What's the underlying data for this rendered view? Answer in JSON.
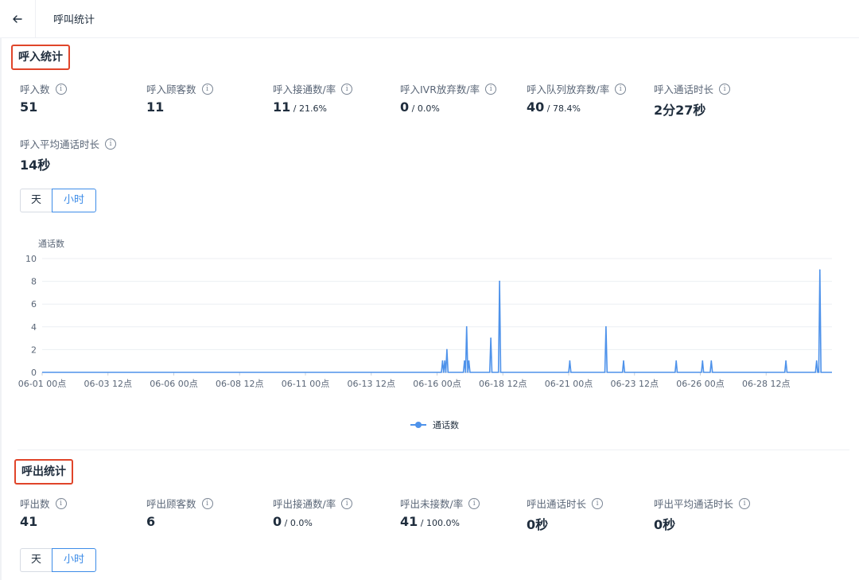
{
  "header": {
    "title": "呼叫统计"
  },
  "inbound": {
    "title": "呼入统计",
    "stats": [
      {
        "label": "呼入数",
        "value": "51",
        "rate": ""
      },
      {
        "label": "呼入顾客数",
        "value": "11",
        "rate": ""
      },
      {
        "label": "呼入接通数/率",
        "value": "11",
        "rate": " / 21.6%"
      },
      {
        "label": "呼入IVR放弃数/率",
        "value": "0",
        "rate": " / 0.0%"
      },
      {
        "label": "呼入队列放弃数/率",
        "value": "40",
        "rate": " / 78.4%"
      },
      {
        "label": "呼入通话时长",
        "value": "2分27秒",
        "rate": ""
      },
      {
        "label": "呼入平均通话时长",
        "value": "14秒",
        "rate": ""
      }
    ],
    "toggle": {
      "day": "天",
      "hour": "小时",
      "active": "hour"
    }
  },
  "outbound": {
    "title": "呼出统计",
    "stats": [
      {
        "label": "呼出数",
        "value": "41",
        "rate": ""
      },
      {
        "label": "呼出顾客数",
        "value": "6",
        "rate": ""
      },
      {
        "label": "呼出接通数/率",
        "value": "0",
        "rate": " / 0.0%"
      },
      {
        "label": "呼出未接数/率",
        "value": "41",
        "rate": " / 100.0%"
      },
      {
        "label": "呼出通话时长",
        "value": "0秒",
        "rate": ""
      },
      {
        "label": "呼出平均通话时长",
        "value": "0秒",
        "rate": ""
      }
    ],
    "toggle": {
      "day": "天",
      "hour": "小时",
      "active": "hour"
    }
  },
  "info_glyph": "i",
  "chart_data": {
    "type": "line",
    "ylabel": "通话数",
    "ylim": [
      0,
      10
    ],
    "yticks": [
      0,
      2,
      4,
      6,
      8,
      10
    ],
    "x_start_hours": 0,
    "x_end_hours": 720,
    "x_tick_labels": [
      {
        "h": 0,
        "label": "06-01 00点"
      },
      {
        "h": 60,
        "label": "06-03 12点"
      },
      {
        "h": 120,
        "label": "06-06 00点"
      },
      {
        "h": 180,
        "label": "06-08 12点"
      },
      {
        "h": 240,
        "label": "06-11 00点"
      },
      {
        "h": 300,
        "label": "06-13 12点"
      },
      {
        "h": 360,
        "label": "06-16 00点"
      },
      {
        "h": 420,
        "label": "06-18 12点"
      },
      {
        "h": 480,
        "label": "06-21 00点"
      },
      {
        "h": 540,
        "label": "06-23 12点"
      },
      {
        "h": 600,
        "label": "06-26 00点"
      },
      {
        "h": 660,
        "label": "06-28 12点"
      }
    ],
    "series": [
      {
        "name": "通话数",
        "color": "#4e92ea",
        "points": [
          [
            365,
            1
          ],
          [
            367,
            1
          ],
          [
            369,
            2
          ],
          [
            385,
            1
          ],
          [
            387,
            4
          ],
          [
            389,
            1
          ],
          [
            409,
            3
          ],
          [
            417,
            8
          ],
          [
            481,
            1
          ],
          [
            514,
            4
          ],
          [
            530,
            1
          ],
          [
            578,
            1
          ],
          [
            602,
            1
          ],
          [
            610,
            1
          ],
          [
            678,
            1
          ],
          [
            706,
            1
          ],
          [
            709,
            9
          ]
        ]
      }
    ],
    "legend": {
      "position": "bottom-center"
    }
  }
}
